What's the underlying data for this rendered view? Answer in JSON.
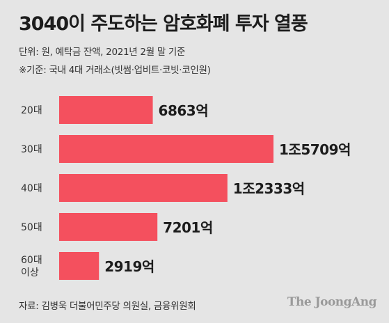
{
  "title": "3040이 주도하는 암호화폐 투자 열풍",
  "subtitle_unit": "단위: 원, 예탁금 잔액, 2021년 2월 말 기준",
  "subtitle_note": "※기준: 국내 4대 거래소(빗썸·업비트·코빗·코인원)",
  "source": "자료: 김병욱 더불어민주당 의원실, 금융위원회",
  "brand": "The JoongAng",
  "colors": {
    "bar": "#f4505e",
    "background": "#e5e5e5",
    "text": "#1c1c1c"
  },
  "chart_data": {
    "type": "bar",
    "orientation": "horizontal",
    "unit": "억 원",
    "categories": [
      "20대",
      "30대",
      "40대",
      "50대",
      "60대 이상"
    ],
    "values": [
      6863,
      15709,
      12333,
      7201,
      2919
    ],
    "data_labels": [
      "6863억",
      "1조5709억",
      "1조2333억",
      "7201억",
      "2919억"
    ],
    "grid": false,
    "legend": "none"
  }
}
